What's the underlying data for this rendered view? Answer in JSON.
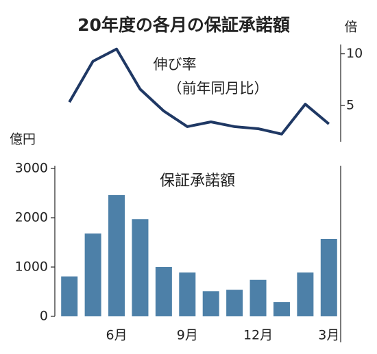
{
  "chart_data": [
    {
      "type": "line",
      "title": "20年度の各月の保証承諾額",
      "annotation": "伸び率",
      "annotation2": "（前年同月比）",
      "y2_label": "倍",
      "values": [
        5.33,
        9.28,
        10.46,
        6.58,
        4.47,
        2.96,
        3.42,
        2.96,
        2.76,
        2.24,
        5.13,
        3.22
      ],
      "color": "#1f3864",
      "y2lim": [
        1.5,
        10.9
      ],
      "y2ticks": [
        5,
        10
      ]
    },
    {
      "type": "bar",
      "annotation": "保証承諾額",
      "y_label": "億円",
      "categories": [
        null,
        null,
        "6月",
        null,
        null,
        "9月",
        null,
        null,
        "12月",
        null,
        null,
        "3月"
      ],
      "values": [
        810,
        1680,
        2460,
        1970,
        1000,
        890,
        510,
        540,
        740,
        290,
        890,
        1570
      ],
      "color": "#4d80a8",
      "ylim": [
        0,
        3000
      ],
      "yticks": [
        0,
        1000,
        2000,
        3000
      ]
    }
  ]
}
